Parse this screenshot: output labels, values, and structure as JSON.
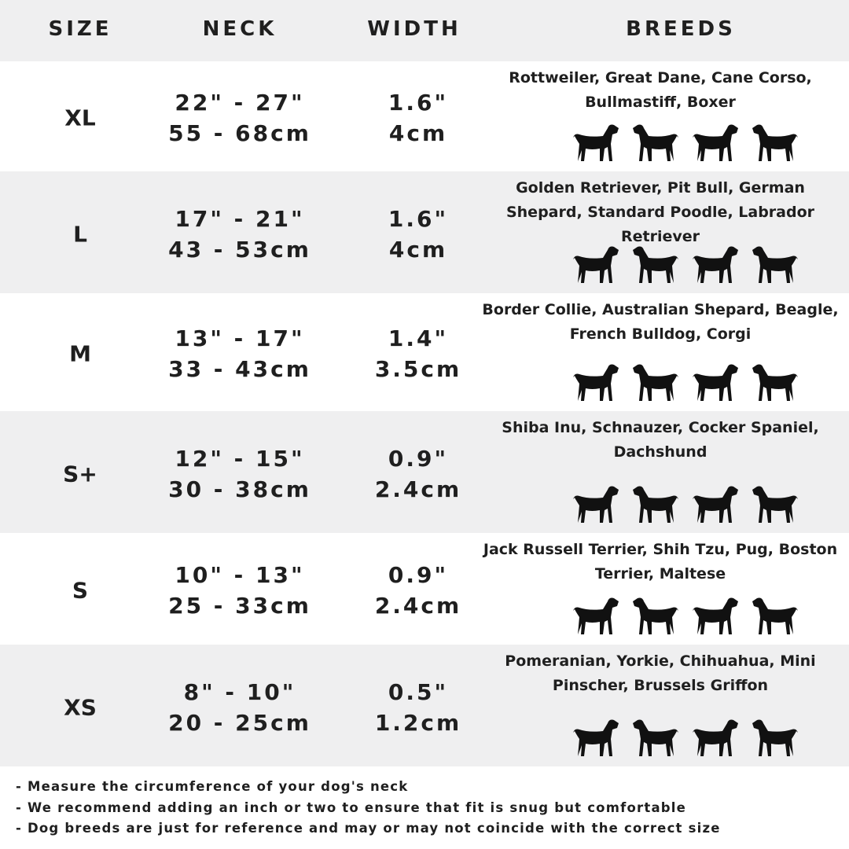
{
  "header": {
    "size": "SIZE",
    "neck": "NECK",
    "width": "WIDTH",
    "breeds": "BREEDS"
  },
  "rows": [
    {
      "size": "XL",
      "neck_in": "22\" - 27\"",
      "neck_cm": "55 - 68cm",
      "width_in": "1.6\"",
      "width_cm": "4cm",
      "breeds": "Rottweiler, Great Dane, Cane Corso, Bullmastiff, Boxer",
      "dog_icons": [
        "rottweiler-icon",
        "great-dane-icon",
        "cane-corso-icon",
        "bullmastiff-icon"
      ]
    },
    {
      "size": "L",
      "neck_in": "17\" - 21\"",
      "neck_cm": "43 - 53cm",
      "width_in": "1.6\"",
      "width_cm": "4cm",
      "breeds": "Golden Retriever, Pit Bull, German Shepard, Standard Poodle, Labrador Retriever",
      "dog_icons": [
        "golden-retriever-icon",
        "labrador-icon",
        "poodle-icon",
        "german-shepard-icon"
      ]
    },
    {
      "size": "M",
      "neck_in": "13\" - 17\"",
      "neck_cm": "33 - 43cm",
      "width_in": "1.4\"",
      "width_cm": "3.5cm",
      "breeds": "Border Collie, Australian Shepard, Beagle, French Bulldog, Corgi",
      "dog_icons": [
        "border-collie-icon",
        "beagle-icon",
        "french-bulldog-icon",
        "corgi-icon"
      ]
    },
    {
      "size": "S+",
      "neck_in": "12\" - 15\"",
      "neck_cm": "30 - 38cm",
      "width_in": "0.9\"",
      "width_cm": "2.4cm",
      "breeds": "Shiba Inu, Schnauzer, Cocker Spaniel, Dachshund",
      "dog_icons": [
        "shiba-inu-icon",
        "schnauzer-icon",
        "cocker-spaniel-icon",
        "dachshund-icon"
      ]
    },
    {
      "size": "S",
      "neck_in": "10\" - 13\"",
      "neck_cm": "25 - 33cm",
      "width_in": "0.9\"",
      "width_cm": "2.4cm",
      "breeds": "Jack Russell Terrier, Shih Tzu, Pug, Boston Terrier, Maltese",
      "dog_icons": [
        "jack-russell-icon",
        "shih-tzu-icon",
        "pug-icon",
        "maltese-icon"
      ]
    },
    {
      "size": "XS",
      "neck_in": "8\" - 10\"",
      "neck_cm": "20 - 25cm",
      "width_in": "0.5\"",
      "width_cm": "1.2cm",
      "breeds": "Pomeranian, Yorkie, Chihuahua, Mini Pinscher, Brussels Griffon",
      "dog_icons": [
        "pomeranian-icon",
        "yorkie-icon",
        "chihuahua-icon",
        "mini-pinscher-icon"
      ]
    }
  ],
  "notes": [
    "- Measure the circumference of your dog's neck",
    "- We recommend adding an inch or two to ensure that fit is snug but comfortable",
    "- Dog breeds are just for reference and may or may not coincide with the correct size"
  ],
  "colors": {
    "row_alt": "#efeff0",
    "text": "#1f1f1f"
  }
}
